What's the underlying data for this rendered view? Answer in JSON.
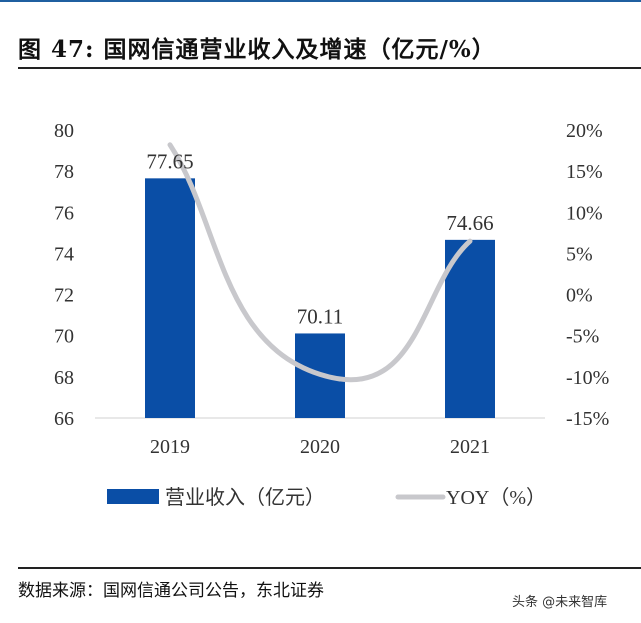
{
  "title": "图 47: 国网信通营业收入及增速（亿元/%）",
  "source": "数据来源：国网信通公司公告，东北证券",
  "watermark": "头条 @未来智库",
  "chart_data": {
    "type": "bar+line",
    "categories": [
      "2019",
      "2020",
      "2021"
    ],
    "series": [
      {
        "name": "营业收入（亿元）",
        "type": "bar",
        "axis": "left",
        "values": [
          77.65,
          70.11,
          74.66
        ],
        "data_labels": [
          "77.65",
          "70.11",
          "74.66"
        ],
        "color": "#0a4ea6"
      },
      {
        "name": "YOY（%）",
        "type": "line",
        "axis": "right",
        "smooth": true,
        "values": [
          18.2,
          -9.7,
          6.5
        ],
        "color": "#c8c8cc"
      }
    ],
    "left_axis": {
      "ylim": [
        66,
        80
      ],
      "ticks": [
        "66",
        "68",
        "70",
        "72",
        "74",
        "76",
        "78",
        "80"
      ]
    },
    "right_axis": {
      "ylim": [
        -15,
        20
      ],
      "ticks": [
        "-15%",
        "-10%",
        "-5%",
        "0%",
        "5%",
        "10%",
        "15%",
        "20%"
      ]
    },
    "grid": false,
    "legend": "bottom"
  }
}
